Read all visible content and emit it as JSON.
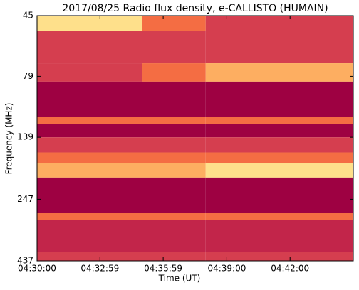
{
  "chart_data": {
    "type": "heatmap",
    "title": "2017/08/25  Radio flux density, e-CALLISTO (HUMAIN)",
    "x_label": "Time (UT)",
    "y_label": "Frequency (MHz)",
    "xlim": [
      "04:30:00",
      "04:45:00"
    ],
    "xticks": [
      "04:30:00",
      "04:32:59",
      "04:35:59",
      "04:39:00",
      "04:42:00"
    ],
    "ylim": [
      45,
      437
    ],
    "yticks": [
      45,
      79,
      139,
      247,
      437
    ],
    "y_log": true,
    "y_inverted": true,
    "x_edges": [
      "04:30:00",
      "04:35:00",
      "04:38:00",
      "04:45:00"
    ],
    "y_edges": [
      45,
      52,
      70,
      83,
      115,
      123,
      139,
      160,
      177,
      202,
      281,
      300,
      403,
      437
    ],
    "z": [
      [
        5,
        3,
        2
      ],
      [
        2,
        2,
        2
      ],
      [
        2,
        3,
        4
      ],
      [
        0,
        0,
        0
      ],
      [
        3,
        3,
        3
      ],
      [
        0,
        0,
        0
      ],
      [
        2,
        2,
        2
      ],
      [
        3,
        3,
        3
      ],
      [
        4,
        4,
        5
      ],
      [
        0,
        0,
        0
      ],
      [
        3,
        3,
        3
      ],
      [
        1,
        1,
        1
      ],
      [
        2,
        2,
        2
      ]
    ],
    "colormap": [
      "#9e0142",
      "#c2254a",
      "#d53e4f",
      "#f46d43",
      "#fdae61",
      "#fee08b",
      "#e6f598"
    ]
  }
}
